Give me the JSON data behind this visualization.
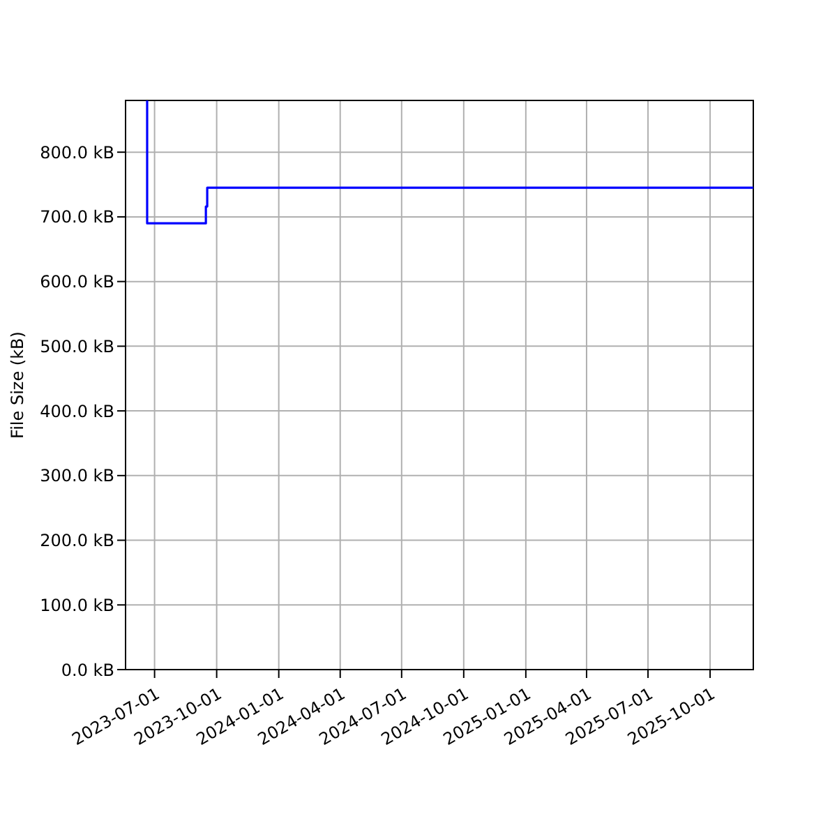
{
  "chart_data": {
    "type": "step",
    "ylabel": "File Size (kB)",
    "color": "#0000ff",
    "x": [
      "2023-06-19",
      "2023-06-20",
      "2023-09-15",
      "2023-09-17",
      "2025-12-04"
    ],
    "values": [
      880,
      690,
      716,
      745,
      745
    ],
    "xlim": [
      "2023-05-19",
      "2025-12-04"
    ],
    "xticks": [
      "2023-07-01",
      "2023-10-01",
      "2024-01-01",
      "2024-04-01",
      "2024-07-01",
      "2024-10-01",
      "2025-01-01",
      "2025-04-01",
      "2025-07-01",
      "2025-10-01"
    ],
    "ylim": [
      0,
      880
    ],
    "yticks": [
      {
        "value": 0,
        "label": "0.0 kB"
      },
      {
        "value": 100,
        "label": "100.0 kB"
      },
      {
        "value": 200,
        "label": "200.0 kB"
      },
      {
        "value": 300,
        "label": "300.0 kB"
      },
      {
        "value": 400,
        "label": "400.0 kB"
      },
      {
        "value": 500,
        "label": "500.0 kB"
      },
      {
        "value": 600,
        "label": "600.0 kB"
      },
      {
        "value": 700,
        "label": "700.0 kB"
      },
      {
        "value": 800,
        "label": "800.0 kB"
      }
    ],
    "grid": true
  }
}
